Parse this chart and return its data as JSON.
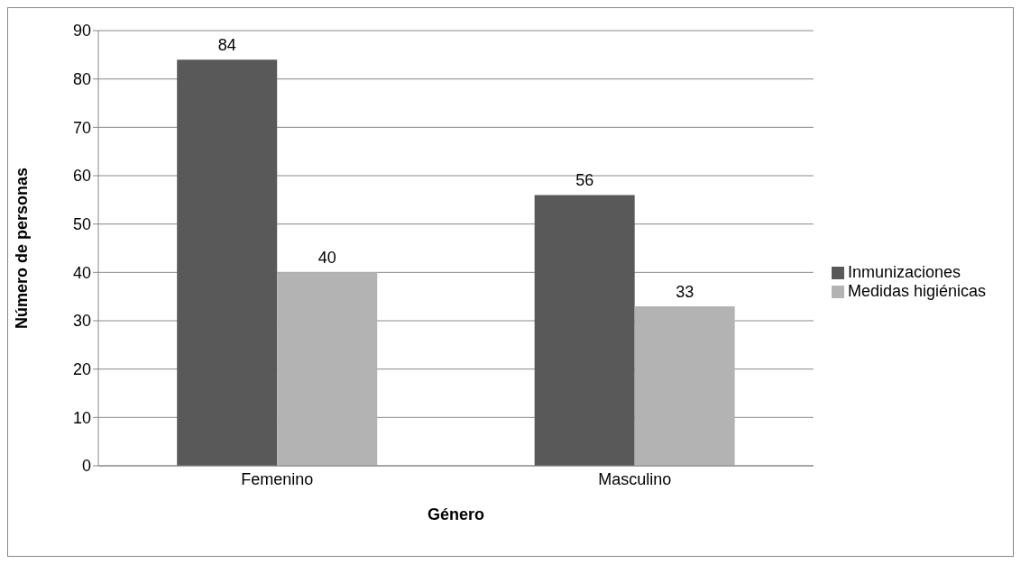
{
  "chart_data": {
    "type": "bar",
    "xlabel": "Género",
    "ylabel": "Número de personas",
    "categories": [
      "Femenino",
      "Masculino"
    ],
    "series": [
      {
        "name": "Inmunizaciones",
        "color": "#595959",
        "values": [
          84,
          56
        ]
      },
      {
        "name": "Medidas higiénicas",
        "color": "#b3b3b3",
        "values": [
          40,
          33
        ]
      }
    ],
    "ylim": [
      0,
      90
    ],
    "yticks": [
      0,
      10,
      20,
      30,
      40,
      50,
      60,
      70,
      80,
      90
    ],
    "grid": "y",
    "legend": "right",
    "data_labels": true
  }
}
